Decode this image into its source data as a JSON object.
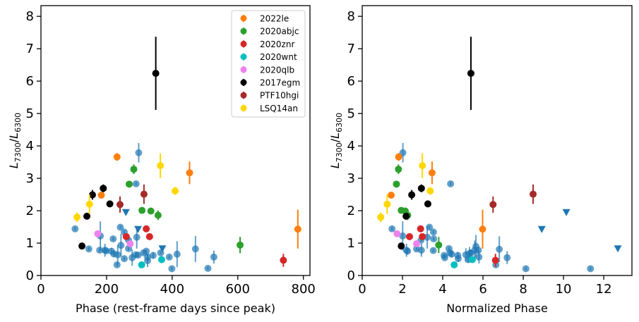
{
  "colors": {
    "2022le": "#ff7f0e",
    "2020abjc": "#2ca02c",
    "2020znr": "#d62728",
    "2020wnt": "#00bfbf",
    "2020qlb": "#ee82ee",
    "2017egm": "#000000",
    "PTF10hgi": "#a52a2a",
    "LSQ14an": "#ffd700",
    "sample": "#1f77b4"
  },
  "legend": {
    "placement": "top-right of left panel",
    "entries": [
      "2022le",
      "2020abjc",
      "2020znr",
      "2020wnt",
      "2020qlb",
      "2017egm",
      "PTF10hgi",
      "LSQ14an"
    ]
  },
  "chart_data": [
    {
      "type": "scatter",
      "xlabel": "Phase (rest-frame days since peak)",
      "ylabel": "L7300/L6300",
      "xlim": [
        0,
        820
      ],
      "ylim": [
        0,
        8.33
      ],
      "xticks": [
        0,
        200,
        400,
        600,
        800
      ],
      "yticks": [
        0,
        1,
        2,
        3,
        4,
        5,
        6,
        7,
        8
      ],
      "grid": false,
      "series": [
        {
          "key": "sample",
          "marker": "circle",
          "alpha": 0.7,
          "points": [
            [
              104,
              1.44,
              0.05
            ],
            [
              146,
              0.82,
              0.05
            ],
            [
              181,
              1.22,
              0.45
            ],
            [
              179,
              0.78,
              0.05
            ],
            [
              195,
              0.78,
              0.2
            ],
            [
              199,
              0.76,
              0.05
            ],
            [
              220,
              1.13,
              0.05
            ],
            [
              215,
              0.75,
              0.1
            ],
            [
              222,
              0.67,
              0.1
            ],
            [
              234,
              0.64,
              0.3
            ],
            [
              232,
              0.33,
              0.05
            ],
            [
              242,
              1.49,
              0.05
            ],
            [
              254,
              1.34,
              0.05
            ],
            [
              244,
              0.93,
              0.35
            ],
            [
              254,
              0.52,
              0.05
            ],
            [
              267,
              0.83,
              0.05
            ],
            [
              267,
              1.09,
              0.05
            ],
            [
              278,
              0.55,
              0.25
            ],
            [
              292,
              1.18,
              0.35
            ],
            [
              289,
              0.64,
              0.05
            ],
            [
              296,
              0.63,
              0.05
            ],
            [
              298,
              3.79,
              0.3
            ],
            [
              290,
              2.83,
              0.05
            ],
            [
              313,
              0.7,
              0.05
            ],
            [
              321,
              0.75,
              0.05
            ],
            [
              325,
              0.57,
              0.1
            ],
            [
              325,
              0.46,
              0.2
            ],
            [
              342,
              0.62,
              0.1
            ],
            [
              365,
              0.7,
              0.05
            ],
            [
              391,
              0.57,
              0.05
            ],
            [
              415,
              0.66,
              0.4
            ],
            [
              399,
              0.21,
              0.05
            ],
            [
              471,
              0.82,
              0.4
            ],
            [
              509,
              0.22,
              0.05
            ],
            [
              527,
              0.57,
              0.2
            ]
          ]
        },
        {
          "key": "sample",
          "marker": "triangle-down",
          "points": [
            [
              259,
              1.94,
              0
            ],
            [
              296,
              1.42,
              0
            ],
            [
              370,
              0.82,
              0
            ]
          ]
        },
        {
          "name": "2022le",
          "marker": "circle",
          "points": [
            [
              232,
              3.66,
              0.12
            ],
            [
              184,
              2.48,
              0.05
            ],
            [
              453,
              3.17,
              0.35
            ],
            [
              783,
              1.43,
              0.6
            ]
          ]
        },
        {
          "name": "2020abjc",
          "marker": "circle",
          "points": [
            [
              283,
              3.28,
              0.15
            ],
            [
              269,
              2.82,
              0.05
            ],
            [
              308,
              2.01,
              0.05
            ],
            [
              335,
              1.99,
              0.05
            ],
            [
              357,
              1.86,
              0.15
            ],
            [
              607,
              0.94,
              0.25
            ]
          ]
        },
        {
          "name": "2020znr",
          "marker": "circle",
          "points": [
            [
              321,
              1.44,
              0.05
            ],
            [
              260,
              1.2,
              0.05
            ],
            [
              331,
              1.2,
              0.05
            ],
            [
              739,
              0.47,
              0.2
            ]
          ]
        },
        {
          "name": "2020wnt",
          "marker": "circle",
          "points": [
            [
              307,
              0.33,
              0.05
            ],
            [
              368,
              0.49,
              0.05
            ]
          ]
        },
        {
          "name": "2020qlb",
          "marker": "circle",
          "points": [
            [
              173,
              1.29,
              0.05
            ],
            [
              272,
              0.98,
              0.05
            ]
          ]
        },
        {
          "name": "2017egm",
          "marker": "circle",
          "points": [
            [
              125,
              0.91,
              0.05
            ],
            [
              140,
              1.83,
              0.05
            ],
            [
              157,
              2.49,
              0.15
            ],
            [
              190,
              2.69,
              0.12
            ],
            [
              210,
              2.21,
              0.05
            ],
            [
              350,
              6.24,
              1.13
            ]
          ]
        },
        {
          "name": "PTF10hgi",
          "marker": "circle",
          "points": [
            [
              241,
              2.19,
              0.25
            ],
            [
              314,
              2.51,
              0.3
            ]
          ]
        },
        {
          "name": "LSQ14an",
          "marker": "circle",
          "points": [
            [
              110,
              1.8,
              0.15
            ],
            [
              148,
              2.2,
              0.3
            ],
            [
              364,
              3.39,
              0.38
            ],
            [
              409,
              2.61,
              0.12
            ]
          ]
        }
      ]
    },
    {
      "type": "scatter",
      "xlabel": "Normalized Phase",
      "ylabel": "L7300/L6300",
      "xlim": [
        0,
        13.4
      ],
      "ylim": [
        0,
        8.33
      ],
      "xticks": [
        0,
        2,
        4,
        6,
        8,
        10,
        12
      ],
      "yticks": [
        0,
        1,
        2,
        3,
        4,
        5,
        6,
        7,
        8
      ],
      "grid": false,
      "series": [
        {
          "key": "sample",
          "marker": "circle",
          "alpha": 0.7,
          "points": [
            [
              1.48,
              1.44,
              0.05
            ],
            [
              2.02,
              3.79,
              0.3
            ],
            [
              4.39,
              2.83,
              0.05
            ],
            [
              2.01,
              1.22,
              0.45
            ],
            [
              2.2,
              0.78,
              0.2
            ],
            [
              2.25,
              0.75,
              0.1
            ],
            [
              2.7,
              0.82,
              0.05
            ],
            [
              2.94,
              0.78,
              0.2
            ],
            [
              2.92,
              1.09,
              0.05
            ],
            [
              3.23,
              1.18,
              0.35
            ],
            [
              3.34,
              1.49,
              0.05
            ],
            [
              3.54,
              1.34,
              0.05
            ],
            [
              3.55,
              1.13,
              0.05
            ],
            [
              3.53,
              0.77,
              0.05
            ],
            [
              4.31,
              0.83,
              0.05
            ],
            [
              4.36,
              0.7,
              0.05
            ],
            [
              4.07,
              0.62,
              0.05
            ],
            [
              4.1,
              0.55,
              0.05
            ],
            [
              4.44,
              0.66,
              0.1
            ],
            [
              4.75,
              0.62,
              0.1
            ],
            [
              4.77,
              0.52,
              0.1
            ],
            [
              5.15,
              0.64,
              0.2
            ],
            [
              5.26,
              0.49,
              0.1
            ],
            [
              5.33,
              0.68,
              0.2
            ],
            [
              5.41,
              0.7,
              0.1
            ],
            [
              5.59,
              0.78,
              0.3
            ],
            [
              5.65,
              0.9,
              0.35
            ],
            [
              5.77,
              0.78,
              0.1
            ],
            [
              5.8,
              0.57,
              0.2
            ],
            [
              6.64,
              0.33,
              0.05
            ],
            [
              6.81,
              0.81,
              0.4
            ],
            [
              7.2,
              0.55,
              0.2
            ],
            [
              8.13,
              0.21,
              0.05
            ],
            [
              11.34,
              0.21,
              0.05
            ]
          ]
        },
        {
          "key": "sample",
          "marker": "triangle-down",
          "points": [
            [
              10.14,
              1.94,
              0
            ],
            [
              8.92,
              1.42,
              0
            ],
            [
              12.7,
              0.82,
              0
            ]
          ]
        },
        {
          "name": "2022le",
          "marker": "circle",
          "points": [
            [
              1.81,
              3.66,
              0.12
            ],
            [
              1.44,
              2.48,
              0.05
            ],
            [
              3.47,
              3.17,
              0.35
            ],
            [
              5.98,
              1.43,
              0.6
            ]
          ]
        },
        {
          "name": "2020abjc",
          "marker": "circle",
          "points": [
            [
              1.8,
              3.28,
              0.15
            ],
            [
              1.7,
              2.82,
              0.05
            ],
            [
              1.94,
              2.01,
              0.05
            ],
            [
              2.14,
              1.99,
              0.05
            ],
            [
              2.26,
              1.86,
              0.15
            ],
            [
              3.8,
              0.94,
              0.25
            ]
          ]
        },
        {
          "name": "2020znr",
          "marker": "circle",
          "points": [
            [
              2.9,
              1.44,
              0.05
            ],
            [
              2.35,
              1.2,
              0.05
            ],
            [
              2.99,
              1.2,
              0.05
            ],
            [
              6.62,
              0.47,
              0.2
            ]
          ]
        },
        {
          "name": "2020wnt",
          "marker": "circle",
          "points": [
            [
              4.57,
              0.33,
              0.05
            ],
            [
              5.47,
              0.49,
              0.05
            ]
          ]
        },
        {
          "name": "2020qlb",
          "marker": "circle",
          "points": [
            [
              1.73,
              1.29,
              0.05
            ],
            [
              2.7,
              0.98,
              0.05
            ]
          ]
        },
        {
          "name": "2017egm",
          "marker": "circle",
          "points": [
            [
              1.94,
              0.91,
              0.05
            ],
            [
              2.18,
              1.83,
              0.05
            ],
            [
              2.46,
              2.49,
              0.15
            ],
            [
              2.94,
              2.69,
              0.12
            ],
            [
              3.26,
              2.21,
              0.05
            ],
            [
              5.4,
              6.24,
              1.13
            ]
          ]
        },
        {
          "name": "PTF10hgi",
          "marker": "circle",
          "points": [
            [
              6.5,
              2.19,
              0.25
            ],
            [
              8.49,
              2.51,
              0.3
            ]
          ]
        },
        {
          "name": "LSQ14an",
          "marker": "circle",
          "points": [
            [
              0.92,
              1.8,
              0.15
            ],
            [
              1.24,
              2.2,
              0.3
            ],
            [
              2.99,
              3.39,
              0.38
            ],
            [
              3.38,
              2.61,
              0.12
            ]
          ]
        }
      ]
    }
  ]
}
